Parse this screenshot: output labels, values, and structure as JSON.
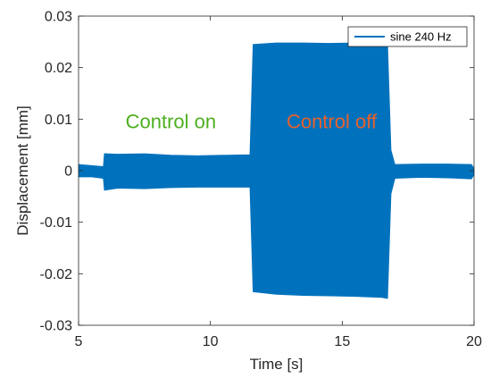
{
  "chart_data": {
    "type": "line",
    "xlabel": "Time [s]",
    "ylabel": "Displacement [mm]",
    "xlim": [
      5,
      20
    ],
    "ylim": [
      -0.03,
      0.03
    ],
    "xticks": [
      5,
      10,
      15,
      20
    ],
    "yticks": [
      -0.03,
      -0.02,
      -0.01,
      0,
      0.01,
      0.02,
      0.03
    ],
    "xtick_labels": [
      "5",
      "10",
      "15",
      "20"
    ],
    "ytick_labels": [
      "-0.03",
      "-0.02",
      "-0.01",
      "0",
      "0.01",
      "0.02",
      "0.03"
    ],
    "grid": false,
    "legend_position": "top-right",
    "series": [
      {
        "name": "sine 240 Hz",
        "color": "#0072BD",
        "envelope": [
          {
            "t": 5.0,
            "upper": 0.0012,
            "lower": -0.0012
          },
          {
            "t": 5.5,
            "upper": 0.001,
            "lower": -0.0012
          },
          {
            "t": 5.94,
            "upper": 0.0008,
            "lower": -0.0015
          },
          {
            "t": 5.98,
            "upper": 0.0033,
            "lower": -0.0038
          },
          {
            "t": 6.5,
            "upper": 0.0032,
            "lower": -0.0034
          },
          {
            "t": 7.5,
            "upper": 0.0033,
            "lower": -0.0035
          },
          {
            "t": 8.5,
            "upper": 0.003,
            "lower": -0.0033
          },
          {
            "t": 9.5,
            "upper": 0.0029,
            "lower": -0.0032
          },
          {
            "t": 10.5,
            "upper": 0.003,
            "lower": -0.0032
          },
          {
            "t": 11.5,
            "upper": 0.0031,
            "lower": -0.0032
          },
          {
            "t": 11.62,
            "upper": 0.0245,
            "lower": -0.0235
          },
          {
            "t": 12.5,
            "upper": 0.0248,
            "lower": -0.024
          },
          {
            "t": 13.5,
            "upper": 0.0248,
            "lower": -0.0242
          },
          {
            "t": 14.5,
            "upper": 0.0247,
            "lower": -0.0243
          },
          {
            "t": 15.5,
            "upper": 0.0248,
            "lower": -0.0244
          },
          {
            "t": 16.5,
            "upper": 0.0247,
            "lower": -0.0246
          },
          {
            "t": 16.72,
            "upper": 0.0245,
            "lower": -0.0248
          },
          {
            "t": 16.85,
            "upper": 0.004,
            "lower": -0.0045
          },
          {
            "t": 17.0,
            "upper": 0.0012,
            "lower": -0.0015
          },
          {
            "t": 18.0,
            "upper": 0.0013,
            "lower": -0.0013
          },
          {
            "t": 19.0,
            "upper": 0.0013,
            "lower": -0.0014
          },
          {
            "t": 19.9,
            "upper": 0.0012,
            "lower": -0.0016
          },
          {
            "t": 20.0,
            "upper": 0.0005,
            "lower": -0.0008
          }
        ]
      }
    ],
    "annotations": [
      {
        "text": "Control on",
        "x": 8.5,
        "y": 0.0082,
        "color": "#4DAF1E"
      },
      {
        "text": "Control off",
        "x": 14.6,
        "y": 0.0082,
        "color": "#E8602C"
      }
    ]
  }
}
